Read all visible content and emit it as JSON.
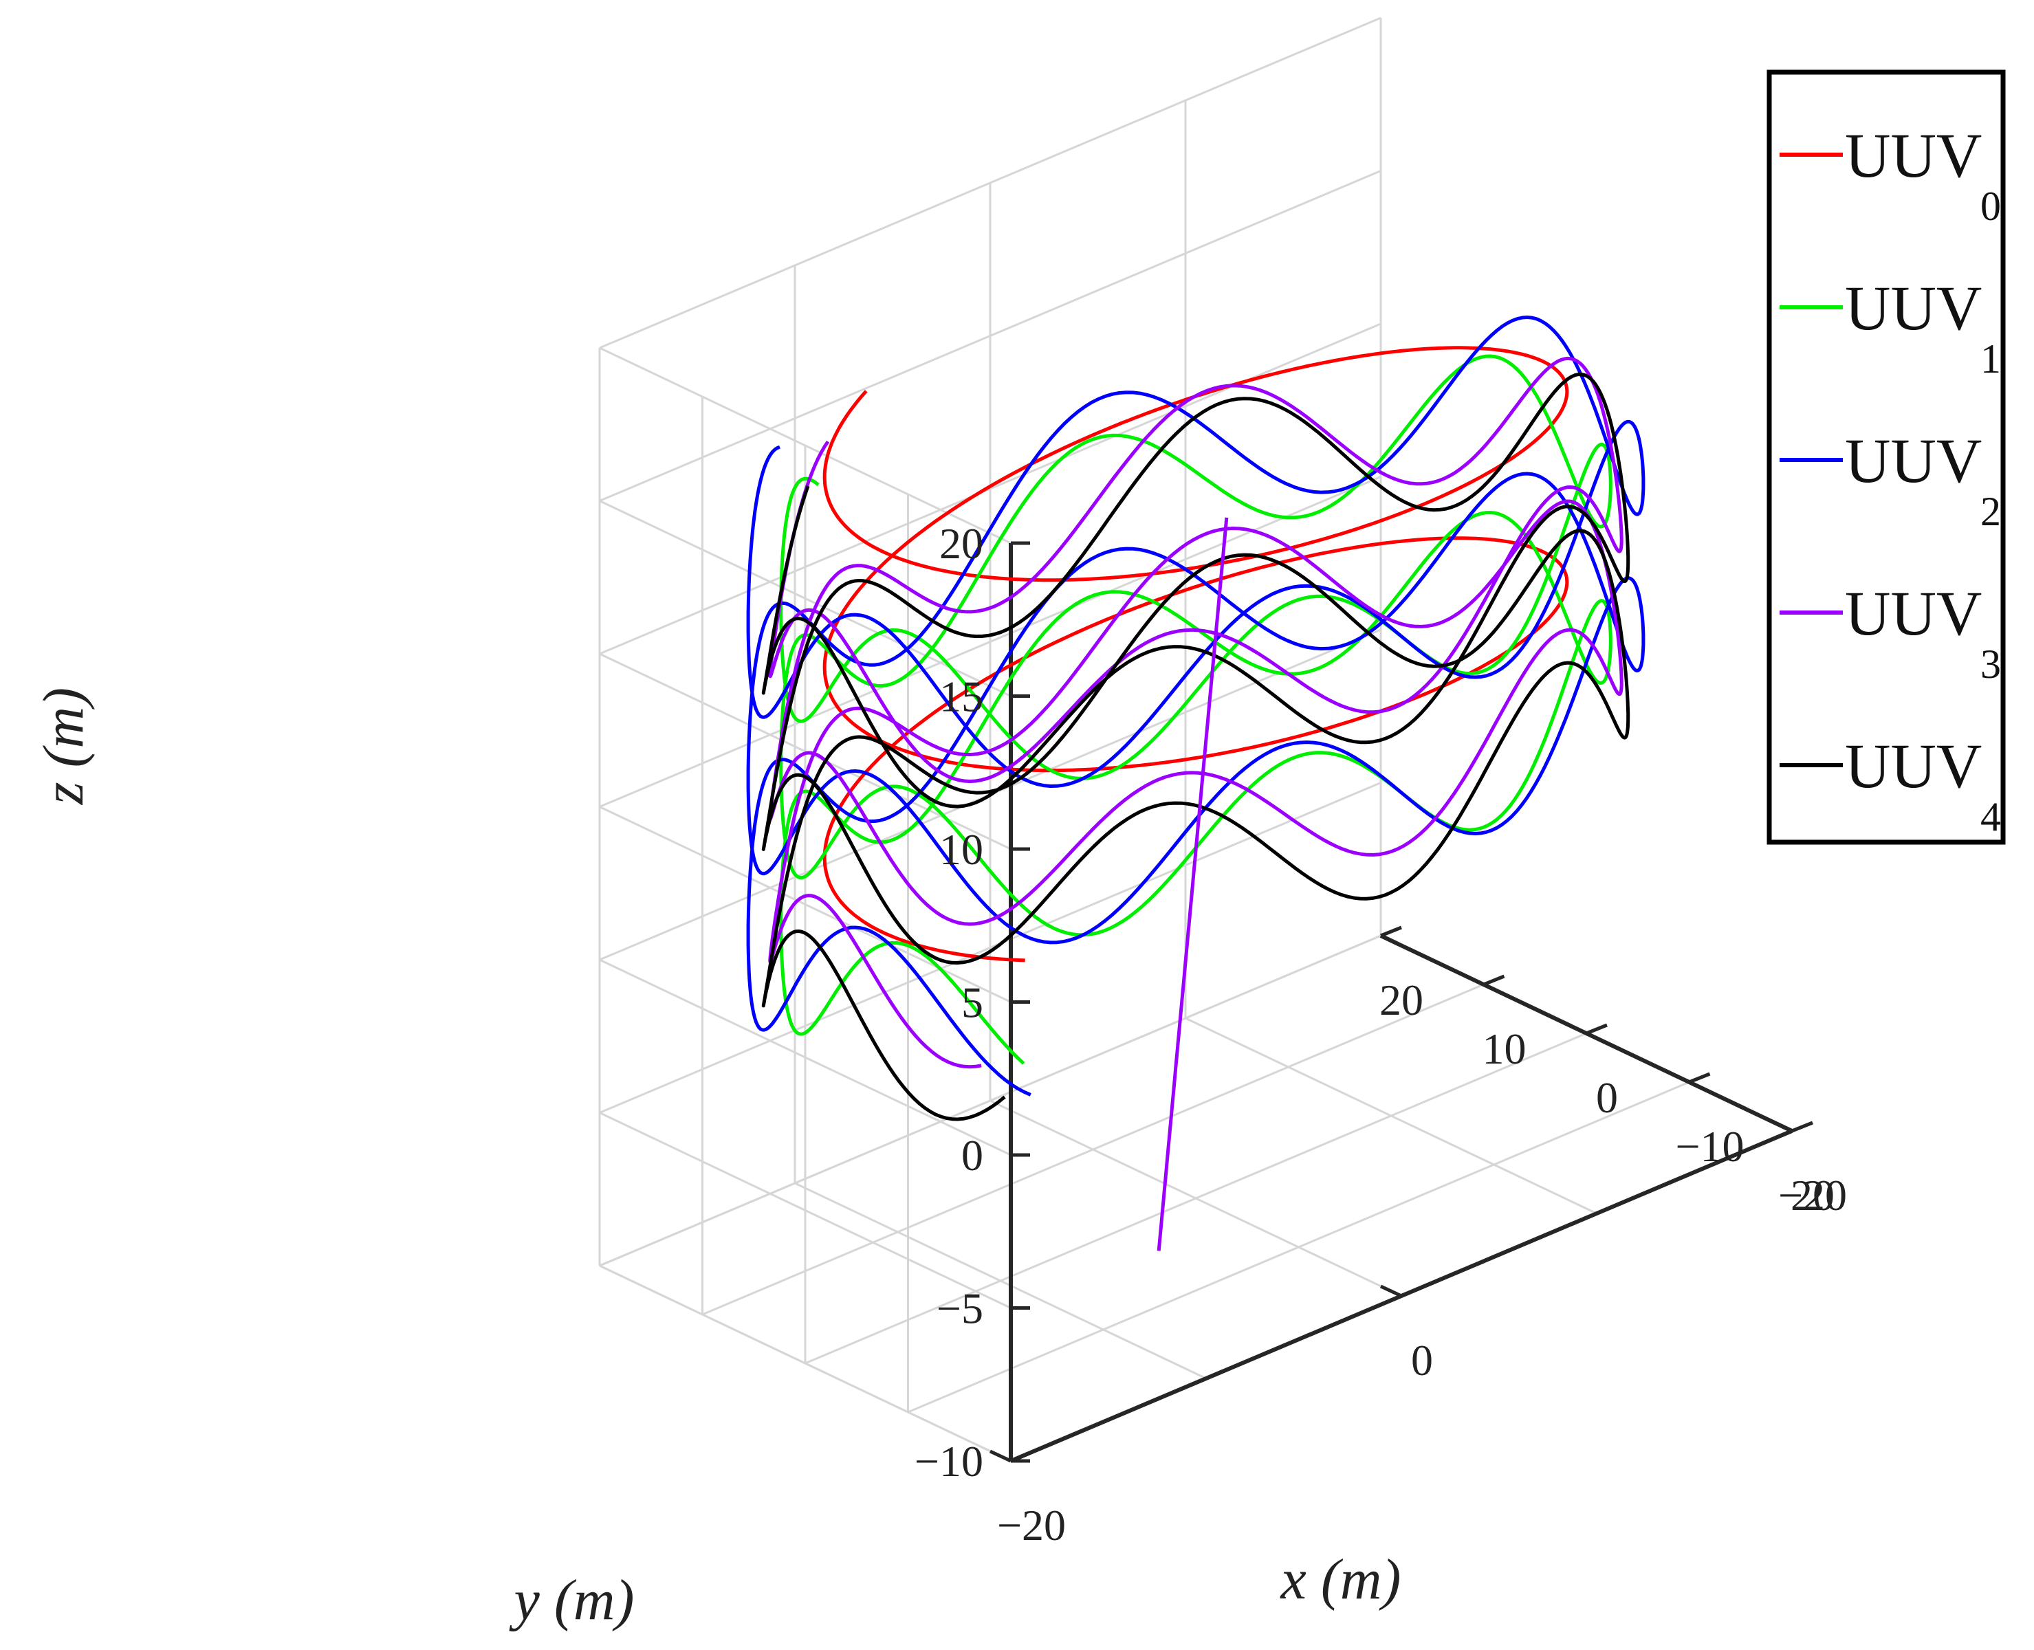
{
  "chart_data": {
    "type": "line3d",
    "title": "",
    "xlabel": "x (m)",
    "ylabel": "y (m)",
    "zlabel": "z (m)",
    "xlim": [
      -20,
      20
    ],
    "ylim": [
      -20,
      20
    ],
    "zlim": [
      -10,
      20
    ],
    "x_ticks": [
      -20,
      0,
      20
    ],
    "y_ticks": [
      20,
      10,
      0,
      -10,
      -20
    ],
    "z_ticks": [
      20,
      15,
      10,
      5,
      0,
      -5,
      -10
    ],
    "x_tick_labels": [
      "−20",
      "0",
      "20"
    ],
    "y_tick_labels": [
      "20",
      "10",
      "0",
      "−10",
      "−20"
    ],
    "z_tick_labels": [
      "20",
      "15",
      "10",
      "5",
      "0",
      "−5",
      "−10"
    ],
    "grid": true,
    "legend_position": "right",
    "series": [
      {
        "name": "UUV",
        "sub": "0",
        "color": "#ff0000",
        "description": "leader helix: radius ~17 m, z from 17 down to ~3 m over 2.25 turns"
      },
      {
        "name": "UUV",
        "sub": "1",
        "color": "#00ee00"
      },
      {
        "name": "UUV",
        "sub": "2",
        "color": "#0000ff"
      },
      {
        "name": "UUV",
        "sub": "3",
        "color": "#9b00ff"
      },
      {
        "name": "UUV",
        "sub": "4",
        "color": "#000000"
      }
    ]
  }
}
